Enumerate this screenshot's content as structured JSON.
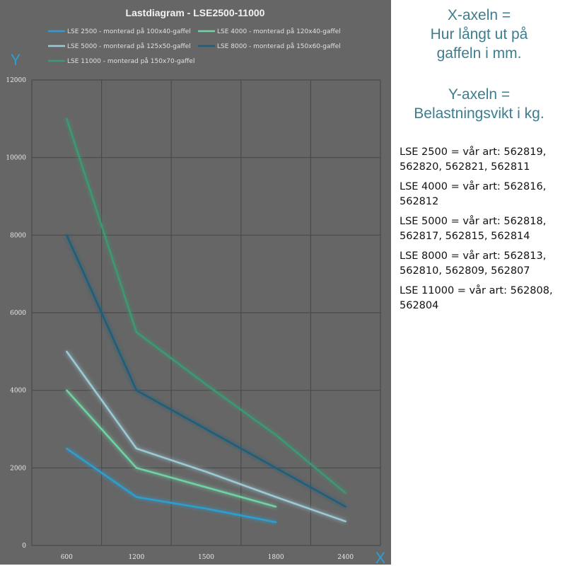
{
  "chart_data": {
    "type": "line",
    "title": "Lastdiagram - LSE2500-11000",
    "xlabel": "X",
    "ylabel": "Y",
    "categories": [
      "600",
      "1200",
      "1500",
      "1800",
      "2400"
    ],
    "ylim": [
      0,
      12000
    ],
    "yticks": [
      "0",
      "2000",
      "4000",
      "6000",
      "8000",
      "10000",
      "12000"
    ],
    "grid": true,
    "legend_position": "top",
    "series": [
      {
        "name": "LSE 2500 - monterad på 100x40-gaffel",
        "color": "#2a9fd0",
        "values": [
          2500,
          1250,
          950,
          600,
          null
        ]
      },
      {
        "name": "LSE 4000 - monterad på 120x40-gaffel",
        "color": "#6fd3a4",
        "values": [
          4000,
          2000,
          1500,
          1000,
          null
        ]
      },
      {
        "name": "LSE 5000 - monterad på 125x50-gaffel",
        "color": "#9ccbd6",
        "values": [
          5000,
          2500,
          1900,
          1250,
          620
        ]
      },
      {
        "name": "LSE 8000 - monterad på 150x60-gaffel",
        "color": "#1f5f7a",
        "values": [
          8000,
          4000,
          3000,
          2000,
          1000
        ]
      },
      {
        "name": "LSE 11000 - monterad på 150x70-gaffel",
        "color": "#3a9a72",
        "values": [
          11000,
          5500,
          4150,
          2850,
          1350
        ]
      }
    ]
  },
  "side": {
    "x_axis_note": [
      "X-axeln =",
      "Hur långt ut på",
      "gaffeln i mm."
    ],
    "y_axis_note": [
      "Y-axeln =",
      "Belastningsvikt i kg."
    ],
    "articles": [
      "LSE 2500 = vår art: 562819, 562820, 562821, 562811",
      "LSE 4000 = vår art: 562816, 562812",
      "LSE 5000 = vår art: 562818, 562817, 562815, 562814",
      "LSE 8000 = vår art: 562813, 562810, 562809, 562807",
      "LSE 11000 = vår art: 562808, 562804"
    ]
  },
  "colors": {
    "panel": "#666666",
    "grid": "#4a4a4a",
    "axis_letter": "#2a9fd0",
    "note": "#3d7d8f"
  }
}
